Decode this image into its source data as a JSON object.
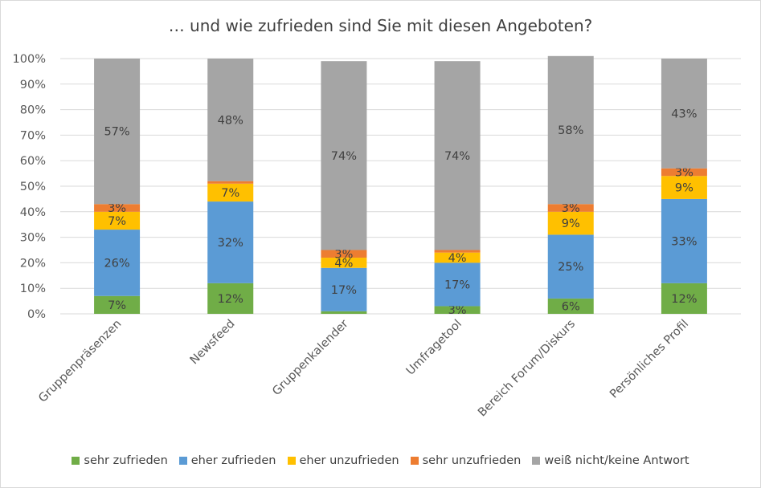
{
  "chart_data": {
    "type": "bar",
    "stacked": true,
    "title": "… und wie zufrieden sind Sie mit diesen Angeboten?",
    "categories": [
      "Gruppenpräsenzen",
      "Newsfeed",
      "Gruppenkalender",
      "Umfragetool",
      "Bereich Forum/Diskurs",
      "Persönliches Profil"
    ],
    "ylim": [
      0,
      100
    ],
    "yticks": [
      "0%",
      "10%",
      "20%",
      "30%",
      "40%",
      "50%",
      "60%",
      "70%",
      "80%",
      "90%",
      "100%"
    ],
    "grid": true,
    "legend_position": "bottom",
    "series": [
      {
        "name": "sehr zufrieden",
        "color": "#70ad47",
        "values": [
          7,
          12,
          1,
          3,
          6,
          12
        ],
        "labels": [
          "7%",
          "12%",
          "",
          "3%",
          "6%",
          "12%"
        ]
      },
      {
        "name": "eher zufrieden",
        "color": "#5b9bd5",
        "values": [
          26,
          32,
          17,
          17,
          25,
          33
        ],
        "labels": [
          "26%",
          "32%",
          "17%",
          "17%",
          "25%",
          "33%"
        ]
      },
      {
        "name": "eher unzufrieden",
        "color": "#ffc000",
        "values": [
          7,
          7,
          4,
          4,
          9,
          9
        ],
        "labels": [
          "7%",
          "7%",
          "4%",
          "4%",
          "9%",
          "9%"
        ]
      },
      {
        "name": "sehr unzufrieden",
        "color": "#ed7d31",
        "values": [
          3,
          1,
          3,
          1,
          3,
          3
        ],
        "labels": [
          "3%",
          "",
          "3%",
          "",
          "3%",
          "3%"
        ]
      },
      {
        "name": "weiß nicht/keine Antwort",
        "color": "#a5a5a5",
        "values": [
          57,
          48,
          74,
          74,
          58,
          43
        ],
        "labels": [
          "57%",
          "48%",
          "74%",
          "74%",
          "58%",
          "43%"
        ]
      }
    ]
  }
}
